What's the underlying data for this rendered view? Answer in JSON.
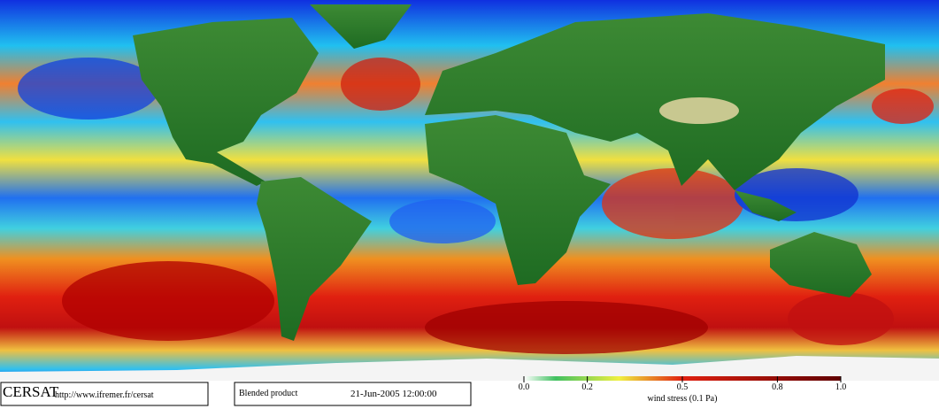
{
  "header": {
    "logo": "CERSAT",
    "url": "http://www.ifremer.fr/cersat"
  },
  "product": {
    "name": "Blended product",
    "date": "21-Jun-2005 12:00:00"
  },
  "colorbar": {
    "label": "wind stress (0.1 Pa)",
    "lim": [
      0,
      1
    ],
    "ticks": [
      {
        "value": 0,
        "label": "0.0"
      },
      0.2,
      0.5,
      0.8,
      {
        "value": 1,
        "label": "1.0"
      }
    ]
  }
}
